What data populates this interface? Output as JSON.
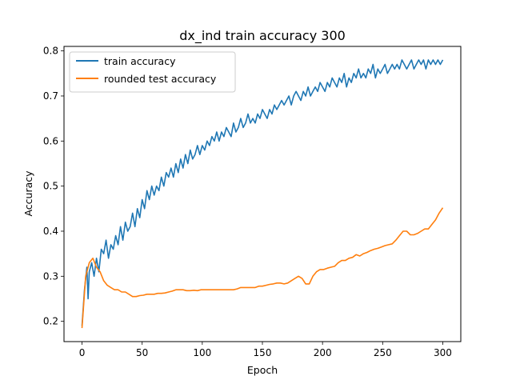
{
  "chart_data": {
    "type": "line",
    "title": "dx_ind train accuracy 300",
    "xlabel": "Epoch",
    "ylabel": "Accuracy",
    "xlim": [
      -15,
      315
    ],
    "ylim": [
      0.155,
      0.81
    ],
    "xticks": [
      0,
      50,
      100,
      150,
      200,
      250,
      300
    ],
    "yticks": [
      0.2,
      0.3,
      0.4,
      0.5,
      0.6,
      0.7,
      0.8
    ],
    "grid": false,
    "legend": "top-left",
    "series": [
      {
        "name": "train accuracy",
        "color": "#1f77b4",
        "x": [
          0,
          2,
          4,
          5,
          6,
          8,
          10,
          12,
          14,
          16,
          18,
          20,
          22,
          24,
          26,
          28,
          30,
          32,
          34,
          36,
          38,
          40,
          42,
          44,
          46,
          48,
          50,
          52,
          54,
          56,
          58,
          60,
          62,
          64,
          66,
          68,
          70,
          72,
          74,
          76,
          78,
          80,
          82,
          84,
          86,
          88,
          90,
          92,
          94,
          96,
          98,
          100,
          102,
          104,
          106,
          108,
          110,
          112,
          114,
          116,
          118,
          120,
          122,
          124,
          126,
          128,
          130,
          132,
          134,
          136,
          138,
          140,
          142,
          144,
          146,
          148,
          150,
          152,
          154,
          156,
          158,
          160,
          162,
          164,
          166,
          168,
          170,
          172,
          174,
          176,
          178,
          180,
          182,
          184,
          186,
          188,
          190,
          192,
          194,
          196,
          198,
          200,
          202,
          204,
          206,
          208,
          210,
          212,
          214,
          216,
          218,
          220,
          222,
          224,
          226,
          228,
          230,
          232,
          234,
          236,
          238,
          240,
          242,
          244,
          246,
          248,
          250,
          252,
          254,
          256,
          258,
          260,
          262,
          264,
          266,
          268,
          270,
          272,
          274,
          276,
          278,
          280,
          282,
          284,
          286,
          288,
          290,
          292,
          294,
          296,
          298,
          300
        ],
        "y": [
          0.19,
          0.27,
          0.32,
          0.25,
          0.31,
          0.33,
          0.3,
          0.34,
          0.31,
          0.36,
          0.35,
          0.38,
          0.34,
          0.37,
          0.36,
          0.39,
          0.37,
          0.41,
          0.38,
          0.42,
          0.4,
          0.41,
          0.44,
          0.41,
          0.45,
          0.43,
          0.47,
          0.45,
          0.49,
          0.47,
          0.5,
          0.48,
          0.5,
          0.49,
          0.52,
          0.5,
          0.53,
          0.52,
          0.54,
          0.52,
          0.55,
          0.53,
          0.56,
          0.54,
          0.57,
          0.55,
          0.58,
          0.56,
          0.57,
          0.59,
          0.57,
          0.59,
          0.58,
          0.6,
          0.59,
          0.61,
          0.6,
          0.62,
          0.6,
          0.62,
          0.61,
          0.63,
          0.62,
          0.61,
          0.64,
          0.62,
          0.63,
          0.65,
          0.63,
          0.64,
          0.66,
          0.64,
          0.65,
          0.64,
          0.66,
          0.65,
          0.67,
          0.66,
          0.65,
          0.67,
          0.66,
          0.68,
          0.67,
          0.68,
          0.69,
          0.68,
          0.69,
          0.7,
          0.68,
          0.7,
          0.71,
          0.7,
          0.69,
          0.71,
          0.7,
          0.72,
          0.7,
          0.71,
          0.72,
          0.71,
          0.73,
          0.72,
          0.71,
          0.73,
          0.72,
          0.74,
          0.73,
          0.72,
          0.74,
          0.73,
          0.75,
          0.72,
          0.74,
          0.73,
          0.75,
          0.74,
          0.76,
          0.74,
          0.75,
          0.74,
          0.76,
          0.75,
          0.77,
          0.74,
          0.76,
          0.75,
          0.76,
          0.77,
          0.75,
          0.76,
          0.77,
          0.76,
          0.77,
          0.76,
          0.78,
          0.77,
          0.76,
          0.77,
          0.78,
          0.76,
          0.77,
          0.78,
          0.77,
          0.78,
          0.76,
          0.78,
          0.77,
          0.78,
          0.77,
          0.78,
          0.77,
          0.78
        ]
      },
      {
        "name": "rounded test accuracy",
        "color": "#ff7f0e",
        "x": [
          0,
          3,
          6,
          9,
          12,
          15,
          18,
          21,
          24,
          27,
          30,
          33,
          36,
          39,
          42,
          45,
          48,
          51,
          54,
          57,
          60,
          63,
          66,
          69,
          72,
          75,
          78,
          81,
          84,
          87,
          90,
          93,
          96,
          99,
          102,
          105,
          108,
          111,
          114,
          117,
          120,
          123,
          126,
          129,
          132,
          135,
          138,
          141,
          144,
          147,
          150,
          153,
          156,
          159,
          162,
          165,
          168,
          171,
          174,
          177,
          180,
          183,
          186,
          189,
          192,
          195,
          198,
          201,
          204,
          207,
          210,
          213,
          216,
          219,
          222,
          225,
          228,
          231,
          234,
          237,
          240,
          243,
          246,
          249,
          252,
          255,
          258,
          261,
          264,
          267,
          270,
          273,
          276,
          279,
          282,
          285,
          288,
          291,
          294,
          297,
          300
        ],
        "y": [
          0.185,
          0.3,
          0.33,
          0.34,
          0.32,
          0.31,
          0.29,
          0.28,
          0.275,
          0.27,
          0.27,
          0.265,
          0.265,
          0.26,
          0.255,
          0.255,
          0.257,
          0.258,
          0.26,
          0.26,
          0.26,
          0.262,
          0.262,
          0.263,
          0.265,
          0.267,
          0.27,
          0.27,
          0.27,
          0.268,
          0.268,
          0.269,
          0.268,
          0.27,
          0.27,
          0.27,
          0.27,
          0.27,
          0.27,
          0.27,
          0.27,
          0.27,
          0.27,
          0.272,
          0.275,
          0.275,
          0.275,
          0.275,
          0.275,
          0.278,
          0.278,
          0.28,
          0.282,
          0.283,
          0.285,
          0.285,
          0.283,
          0.285,
          0.29,
          0.295,
          0.3,
          0.295,
          0.283,
          0.283,
          0.3,
          0.31,
          0.315,
          0.315,
          0.318,
          0.32,
          0.322,
          0.33,
          0.335,
          0.335,
          0.34,
          0.342,
          0.348,
          0.345,
          0.35,
          0.353,
          0.357,
          0.36,
          0.362,
          0.365,
          0.368,
          0.37,
          0.372,
          0.38,
          0.39,
          0.4,
          0.4,
          0.392,
          0.392,
          0.395,
          0.4,
          0.405,
          0.405,
          0.415,
          0.425,
          0.44,
          0.452
        ]
      }
    ]
  }
}
